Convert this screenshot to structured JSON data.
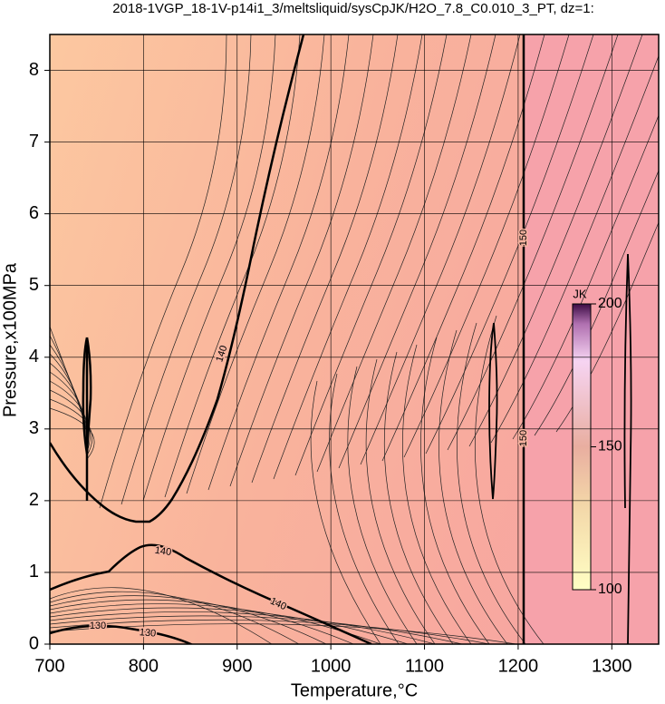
{
  "chart_data": {
    "type": "contour",
    "title": "2018-1VGP_18-1V-p14i1_3/meltsliquid/sysCpJK/H2O_7.8_C0.010_3_PT, dz=1:",
    "x_label": "Temperature,°C",
    "y_label": "Pressure,x100MPa",
    "xlim": [
      700,
      1350
    ],
    "ylim": [
      0,
      8.5
    ],
    "xticks": [
      700,
      800,
      900,
      1000,
      1100,
      1200,
      1300
    ],
    "yticks": [
      0,
      1,
      2,
      3,
      4,
      5,
      6,
      7,
      8
    ],
    "grid": true,
    "contour_labels": [
      140,
      140,
      140,
      130,
      130,
      150,
      150
    ],
    "colorbar": {
      "label": "JK",
      "lim": [
        100,
        200
      ],
      "ticks": [
        100,
        150,
        200
      ]
    }
  }
}
